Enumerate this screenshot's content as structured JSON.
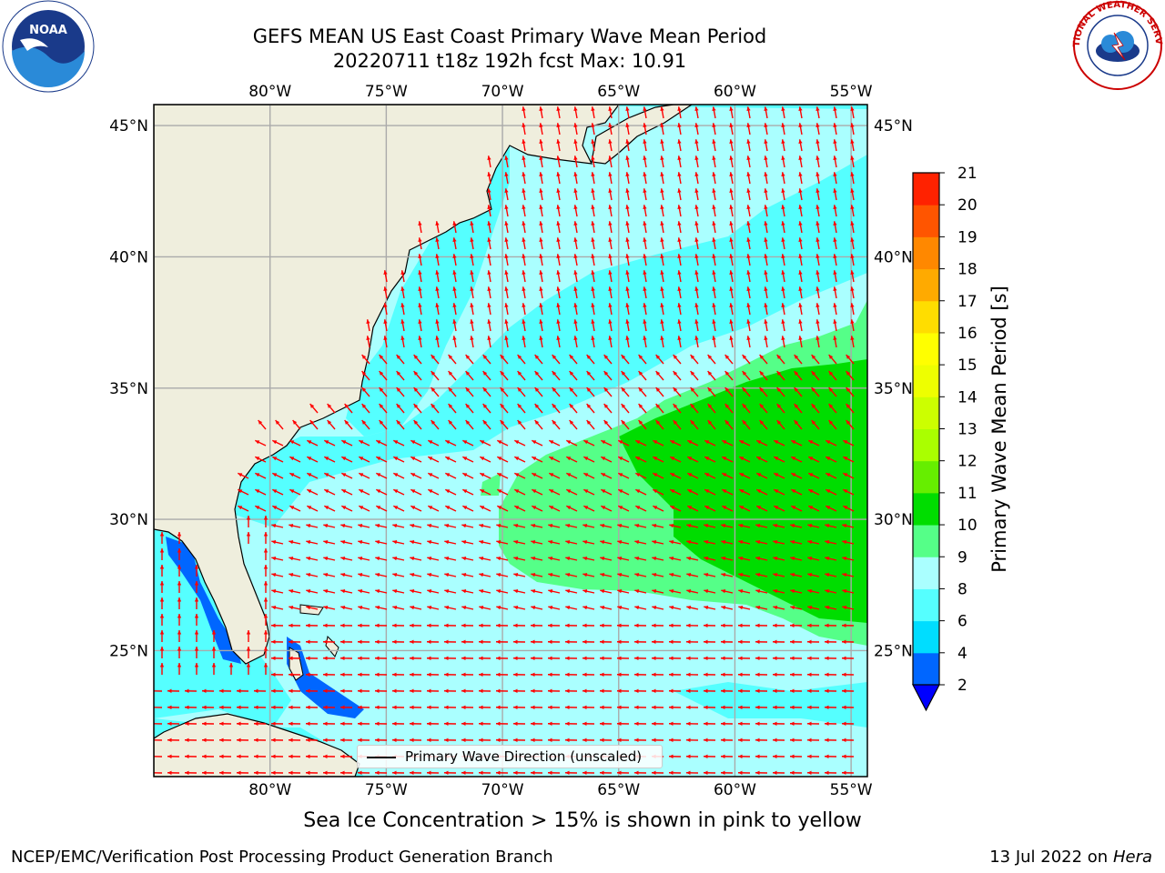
{
  "title": {
    "line1": "GEFS MEAN US East Coast Primary Wave Mean Period",
    "line2": "20220711 t18z 192h fcst   Max: 10.91"
  },
  "logos": {
    "noaa_text": "NOAA",
    "noaa_ring": "NATIONAL OCEANIC AND ATMOSPHERIC ADMINISTRATION · U.S. DEPARTMENT OF COMMERCE",
    "nws_ring": "NATIONAL WEATHER SERVICE"
  },
  "map": {
    "lon_ticks": [
      "80°W",
      "75°W",
      "70°W",
      "65°W",
      "60°W",
      "55°W"
    ],
    "lat_ticks": [
      "45°N",
      "40°N",
      "35°N",
      "30°N",
      "25°N"
    ],
    "lon_values": [
      -80,
      -75,
      -70,
      -65,
      -60,
      -55
    ],
    "lat_values": [
      45,
      40,
      35,
      30,
      25
    ],
    "extent": {
      "lon_min": -85,
      "lon_max": -54.3,
      "lat_min": 20.2,
      "lat_max": 45.8
    },
    "arrow_color": "#ff0000",
    "land_color": "#efeedd",
    "ocean_base_color": "#aaffff"
  },
  "legend": {
    "label": "Primary Wave Direction (unscaled)"
  },
  "colorbar": {
    "title": "Primary Wave Mean Period [s]",
    "ticks": [
      "2",
      "4",
      "6",
      "8",
      "9",
      "10",
      "11",
      "12",
      "13",
      "14",
      "15",
      "16",
      "17",
      "18",
      "19",
      "20",
      "21"
    ],
    "colors": [
      "#0066ff",
      "#00ddff",
      "#55ffff",
      "#aaffff",
      "#55ff88",
      "#00dd00",
      "#66ee00",
      "#aaff00",
      "#ccff00",
      "#eeff00",
      "#ffff00",
      "#ffdd00",
      "#ffaa00",
      "#ff8800",
      "#ff5500",
      "#ff2200"
    ],
    "extend_color": "#0000ff"
  },
  "sea_ice_note": "Sea Ice Concentration > 15% is shown in pink to yellow",
  "footer": {
    "left": "NCEP/EMC/Verification Post Processing Product Generation Branch",
    "right_date": "13 Jul 2022 on ",
    "right_host": "Hera"
  }
}
